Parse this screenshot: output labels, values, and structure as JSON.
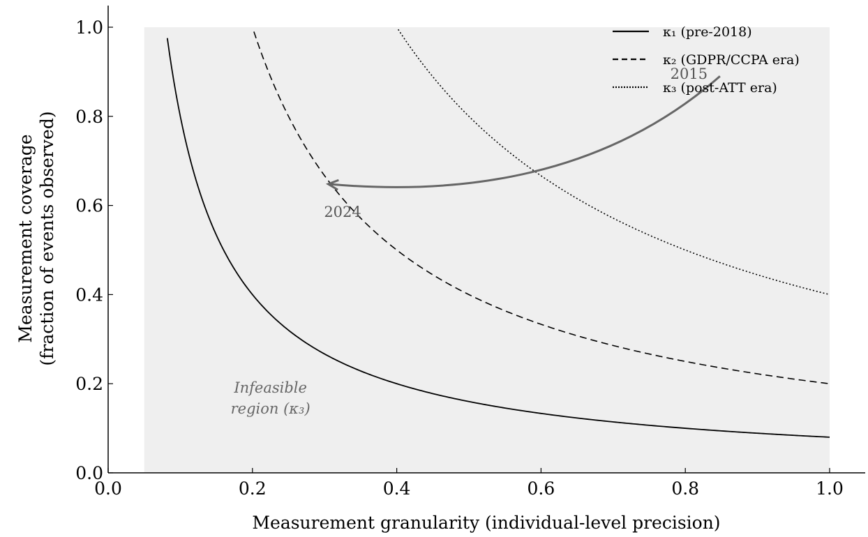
{
  "chart_data": {
    "type": "line",
    "xlabel": "Measurement granularity (individual-level precision)",
    "ylabel_line1": "Measurement coverage",
    "ylabel_line2": "(fraction of events observed)",
    "xlim": [
      0.0,
      1.05
    ],
    "ylim": [
      0.0,
      1.05
    ],
    "x_ticks": [
      0.0,
      0.2,
      0.4,
      0.6,
      0.8,
      1.0
    ],
    "x_tick_labels": [
      "0.0",
      "0.2",
      "0.4",
      "0.6",
      "0.8",
      "1.0"
    ],
    "y_ticks": [
      0.0,
      0.2,
      0.4,
      0.6,
      0.8,
      1.0
    ],
    "y_tick_labels": [
      "0.0",
      "0.2",
      "0.4",
      "0.6",
      "0.8",
      "1.0"
    ],
    "grid": false,
    "legend_position": "top-right",
    "series": [
      {
        "name": "κ₁ (pre-2018)",
        "style": "solid",
        "kappa": 0.08,
        "x_start": 0.082,
        "x_end": 1.0,
        "color": "#000000"
      },
      {
        "name": "κ₂ (GDPR/CCPA era)",
        "style": "dashed",
        "kappa": 0.2,
        "x_start": 0.202,
        "x_end": 1.0,
        "color": "#000000"
      },
      {
        "name": "κ₃ (post-ATT era)",
        "style": "dotted",
        "kappa": 0.4,
        "x_start": 0.402,
        "x_end": 1.0,
        "color": "#000000"
      }
    ],
    "shaded_region": {
      "x_from": 0.05,
      "x_to": 1.0,
      "y_to": 1.0,
      "color": "#efefef",
      "label_line1": "Infeasible",
      "label_line2": "region (κ₃)",
      "label_x": 0.225,
      "label_y": 0.155
    },
    "annotations": [
      {
        "text": "2015",
        "x": 0.805,
        "y": 0.895
      },
      {
        "text": "2024",
        "x": 0.325,
        "y": 0.585
      }
    ],
    "arrow": {
      "from": [
        0.848,
        0.89
      ],
      "to": [
        0.305,
        0.648
      ],
      "color": "#666666"
    }
  }
}
